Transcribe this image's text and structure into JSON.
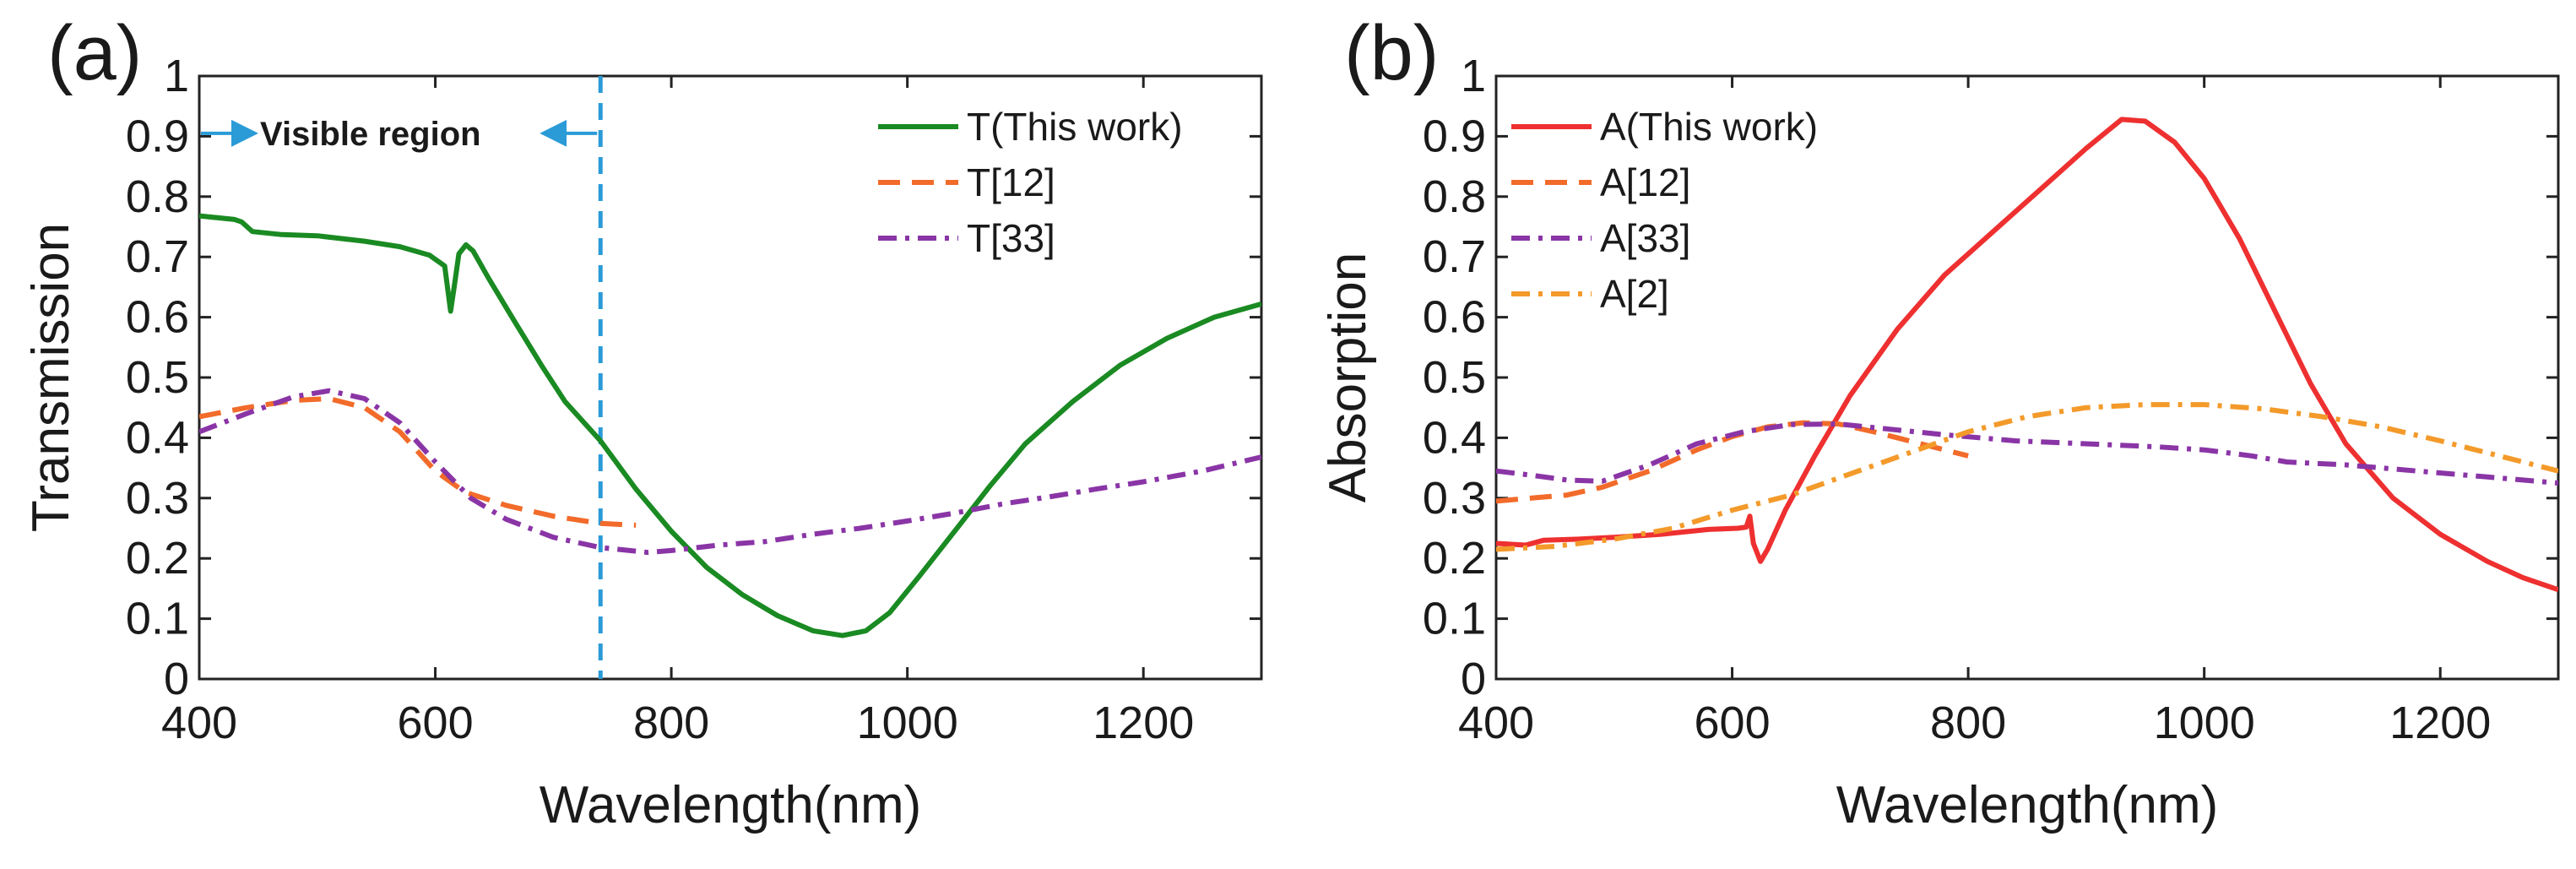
{
  "chart_data": [
    {
      "type": "line",
      "panel": "(a)",
      "xlabel": "Wavelength(nm)",
      "ylabel": "Transmission",
      "xlim": [
        400,
        1300
      ],
      "ylim": [
        0,
        1
      ],
      "xticks": [
        400,
        600,
        800,
        1000,
        1200
      ],
      "yticks": [
        "0",
        "0.1",
        "0.2",
        "0.3",
        "0.4",
        "0.5",
        "0.6",
        "0.7",
        "0.8",
        "0.9",
        "1"
      ],
      "grid": false,
      "legend_position": "top-right",
      "annotation": {
        "text": "Visible region",
        "x_from": 400,
        "x_to": 740,
        "y": 0.905,
        "line_x": 740,
        "color": "#2a9bd7"
      },
      "series": [
        {
          "name": "T(This work)",
          "color": "#1a8a22",
          "dash": "solid",
          "points": [
            [
              400,
              0.768
            ],
            [
              430,
              0.762
            ],
            [
              436,
              0.758
            ],
            [
              445,
              0.742
            ],
            [
              470,
              0.737
            ],
            [
              500,
              0.735
            ],
            [
              540,
              0.726
            ],
            [
              570,
              0.717
            ],
            [
              595,
              0.703
            ],
            [
              608,
              0.685
            ],
            [
              613,
              0.61
            ],
            [
              616,
              0.65
            ],
            [
              620,
              0.705
            ],
            [
              626,
              0.72
            ],
            [
              632,
              0.71
            ],
            [
              645,
              0.665
            ],
            [
              665,
              0.6
            ],
            [
              690,
              0.52
            ],
            [
              710,
              0.46
            ],
            [
              740,
              0.395
            ],
            [
              770,
              0.315
            ],
            [
              800,
              0.245
            ],
            [
              830,
              0.185
            ],
            [
              860,
              0.14
            ],
            [
              890,
              0.105
            ],
            [
              920,
              0.08
            ],
            [
              945,
              0.072
            ],
            [
              965,
              0.08
            ],
            [
              985,
              0.11
            ],
            [
              1010,
              0.17
            ],
            [
              1040,
              0.245
            ],
            [
              1070,
              0.32
            ],
            [
              1100,
              0.39
            ],
            [
              1140,
              0.46
            ],
            [
              1180,
              0.52
            ],
            [
              1220,
              0.565
            ],
            [
              1260,
              0.6
            ],
            [
              1300,
              0.622
            ]
          ]
        },
        {
          "name": "T[12]",
          "color": "#f26b2a",
          "dash": "dashed",
          "points": [
            [
              400,
              0.435
            ],
            [
              440,
              0.45
            ],
            [
              480,
              0.462
            ],
            [
              510,
              0.465
            ],
            [
              540,
              0.45
            ],
            [
              570,
              0.41
            ],
            [
              600,
              0.345
            ],
            [
              625,
              0.31
            ],
            [
              660,
              0.288
            ],
            [
              700,
              0.27
            ],
            [
              740,
              0.258
            ],
            [
              770,
              0.255
            ]
          ]
        },
        {
          "name": "T[33]",
          "color": "#8a35a6",
          "dash": "dashdot",
          "points": [
            [
              400,
              0.41
            ],
            [
              440,
              0.44
            ],
            [
              480,
              0.468
            ],
            [
              510,
              0.478
            ],
            [
              540,
              0.465
            ],
            [
              570,
              0.425
            ],
            [
              600,
              0.36
            ],
            [
              630,
              0.3
            ],
            [
              660,
              0.265
            ],
            [
              700,
              0.235
            ],
            [
              740,
              0.218
            ],
            [
              780,
              0.21
            ],
            [
              800,
              0.213
            ],
            [
              840,
              0.222
            ],
            [
              880,
              0.228
            ],
            [
              920,
              0.24
            ],
            [
              960,
              0.25
            ],
            [
              1000,
              0.262
            ],
            [
              1040,
              0.275
            ],
            [
              1080,
              0.29
            ],
            [
              1120,
              0.302
            ],
            [
              1160,
              0.315
            ],
            [
              1200,
              0.327
            ],
            [
              1250,
              0.345
            ],
            [
              1300,
              0.368
            ]
          ]
        }
      ]
    },
    {
      "type": "line",
      "panel": "(b)",
      "xlabel": "Wavelength(nm)",
      "ylabel": "Absorption",
      "xlim": [
        400,
        1300
      ],
      "ylim": [
        0,
        1
      ],
      "xticks": [
        400,
        600,
        800,
        1000,
        1200
      ],
      "yticks": [
        "0",
        "0.1",
        "0.2",
        "0.3",
        "0.4",
        "0.5",
        "0.6",
        "0.7",
        "0.8",
        "0.9",
        "1"
      ],
      "grid": false,
      "legend_position": "top-left",
      "series": [
        {
          "name": "A(This work)",
          "color": "#ee3030",
          "dash": "solid",
          "points": [
            [
              400,
              0.225
            ],
            [
              425,
              0.222
            ],
            [
              440,
              0.23
            ],
            [
              470,
              0.232
            ],
            [
              500,
              0.235
            ],
            [
              540,
              0.24
            ],
            [
              580,
              0.248
            ],
            [
              605,
              0.25
            ],
            [
              612,
              0.252
            ],
            [
              615,
              0.27
            ],
            [
              618,
              0.225
            ],
            [
              624,
              0.195
            ],
            [
              630,
              0.215
            ],
            [
              645,
              0.28
            ],
            [
              670,
              0.37
            ],
            [
              700,
              0.47
            ],
            [
              740,
              0.58
            ],
            [
              780,
              0.67
            ],
            [
              820,
              0.74
            ],
            [
              860,
              0.81
            ],
            [
              900,
              0.88
            ],
            [
              930,
              0.928
            ],
            [
              950,
              0.925
            ],
            [
              975,
              0.89
            ],
            [
              1000,
              0.83
            ],
            [
              1030,
              0.73
            ],
            [
              1060,
              0.61
            ],
            [
              1090,
              0.49
            ],
            [
              1120,
              0.39
            ],
            [
              1160,
              0.3
            ],
            [
              1200,
              0.24
            ],
            [
              1240,
              0.195
            ],
            [
              1270,
              0.168
            ],
            [
              1300,
              0.148
            ]
          ]
        },
        {
          "name": "A[12]",
          "color": "#f26b2a",
          "dash": "dashed",
          "points": [
            [
              400,
              0.295
            ],
            [
              430,
              0.3
            ],
            [
              460,
              0.305
            ],
            [
              490,
              0.318
            ],
            [
              530,
              0.345
            ],
            [
              570,
              0.38
            ],
            [
              600,
              0.402
            ],
            [
              630,
              0.418
            ],
            [
              660,
              0.425
            ],
            [
              690,
              0.423
            ],
            [
              720,
              0.41
            ],
            [
              750,
              0.395
            ],
            [
              780,
              0.38
            ],
            [
              800,
              0.37
            ]
          ]
        },
        {
          "name": "A[33]",
          "color": "#8a35a6",
          "dash": "dashdot",
          "points": [
            [
              400,
              0.345
            ],
            [
              430,
              0.338
            ],
            [
              460,
              0.33
            ],
            [
              490,
              0.328
            ],
            [
              530,
              0.355
            ],
            [
              570,
              0.39
            ],
            [
              610,
              0.41
            ],
            [
              650,
              0.422
            ],
            [
              690,
              0.423
            ],
            [
              730,
              0.415
            ],
            [
              780,
              0.405
            ],
            [
              840,
              0.395
            ],
            [
              900,
              0.39
            ],
            [
              960,
              0.385
            ],
            [
              1000,
              0.38
            ],
            [
              1040,
              0.37
            ],
            [
              1070,
              0.36
            ],
            [
              1120,
              0.355
            ],
            [
              1180,
              0.345
            ],
            [
              1240,
              0.335
            ],
            [
              1300,
              0.325
            ]
          ]
        },
        {
          "name": "A[2]",
          "color": "#f39a2a",
          "dash": "dashdot",
          "points": [
            [
              400,
              0.215
            ],
            [
              450,
              0.22
            ],
            [
              500,
              0.232
            ],
            [
              550,
              0.25
            ],
            [
              600,
              0.28
            ],
            [
              650,
              0.305
            ],
            [
              700,
              0.34
            ],
            [
              750,
              0.375
            ],
            [
              800,
              0.41
            ],
            [
              850,
              0.435
            ],
            [
              900,
              0.45
            ],
            [
              950,
              0.455
            ],
            [
              1000,
              0.455
            ],
            [
              1050,
              0.448
            ],
            [
              1100,
              0.435
            ],
            [
              1150,
              0.418
            ],
            [
              1200,
              0.395
            ],
            [
              1250,
              0.37
            ],
            [
              1300,
              0.345
            ]
          ]
        }
      ]
    }
  ]
}
